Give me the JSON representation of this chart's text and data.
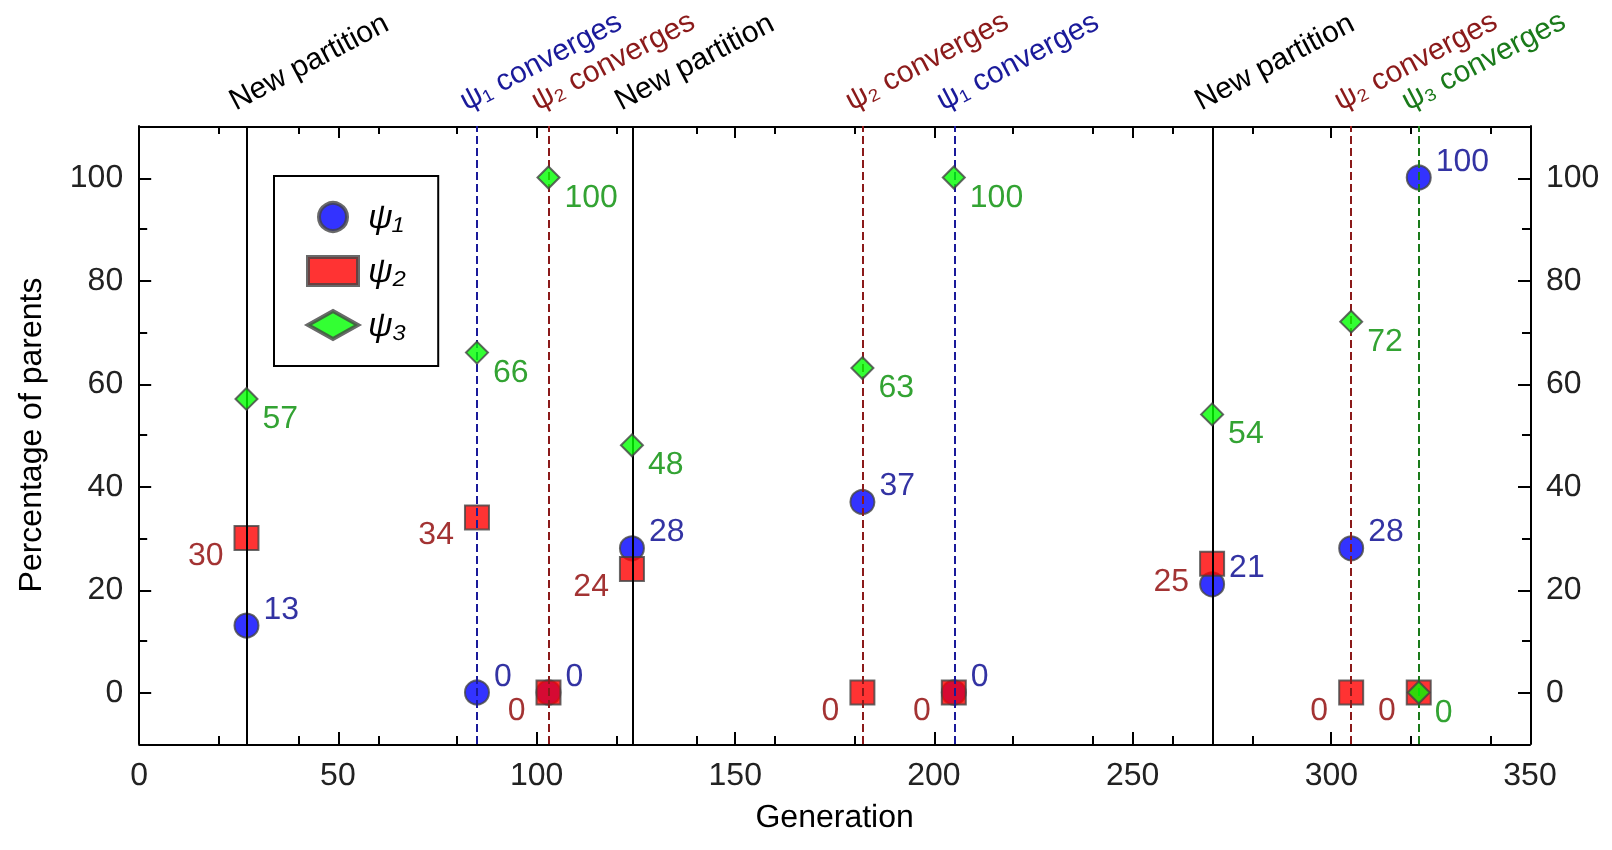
{
  "chart_data": {
    "type": "scatter",
    "xlabel": "Generation",
    "ylabel": "Percentage of parents",
    "x": [
      27,
      85,
      103,
      124,
      182,
      205,
      270,
      305,
      322
    ],
    "series": [
      {
        "name": "ψ₁",
        "color": "#0000ff",
        "marker": "circle",
        "values": [
          13,
          0,
          0,
          28,
          37,
          0,
          21,
          28,
          100
        ]
      },
      {
        "name": "ψ₂",
        "color": "#ff0000",
        "marker": "square",
        "values": [
          30,
          34,
          0,
          24,
          0,
          0,
          25,
          0,
          0
        ]
      },
      {
        "name": "ψ₃",
        "color": "#00ff00",
        "marker": "diamond",
        "values": [
          57,
          66,
          100,
          48,
          63,
          100,
          54,
          72,
          0
        ]
      }
    ],
    "xlim": [
      0,
      350
    ],
    "xticks": [
      0,
      50,
      100,
      150,
      200,
      250,
      300,
      350
    ],
    "ylim": [
      -10,
      110
    ],
    "yticks": [
      0,
      20,
      40,
      60,
      80,
      100
    ],
    "y2lim": [
      -10,
      110
    ],
    "y2ticks": [
      0,
      20,
      40,
      60,
      80,
      100
    ],
    "ref_lines": [
      {
        "axis": "x",
        "value": 27,
        "label": "New partition",
        "color": "#000000",
        "line_style": "solid"
      },
      {
        "axis": "x",
        "value": 85,
        "label": "ψ₁ converges",
        "color": "#1a1a9a",
        "line_style": "dashed"
      },
      {
        "axis": "x",
        "value": 103,
        "label": "ψ₂ converges",
        "color": "#8b1a1a",
        "line_style": "dashed"
      },
      {
        "axis": "x",
        "value": 124,
        "label": "New partition",
        "color": "#000000",
        "line_style": "solid"
      },
      {
        "axis": "x",
        "value": 182,
        "label": "ψ₂ converges",
        "color": "#8b1a1a",
        "line_style": "dashed"
      },
      {
        "axis": "x",
        "value": 205,
        "label": "ψ₁ converges",
        "color": "#1a1a9a",
        "line_style": "dashed"
      },
      {
        "axis": "x",
        "value": 270,
        "label": "New partition",
        "color": "#000000",
        "line_style": "solid"
      },
      {
        "axis": "x",
        "value": 305,
        "label": "ψ₂ converges",
        "color": "#8b1a1a",
        "line_style": "dashed"
      },
      {
        "axis": "x",
        "value": 322,
        "label": "ψ₃ converges",
        "color": "#1a7a1a",
        "line_style": "dashed"
      }
    ],
    "data_labels": true,
    "legend": "top left",
    "grid": false
  }
}
